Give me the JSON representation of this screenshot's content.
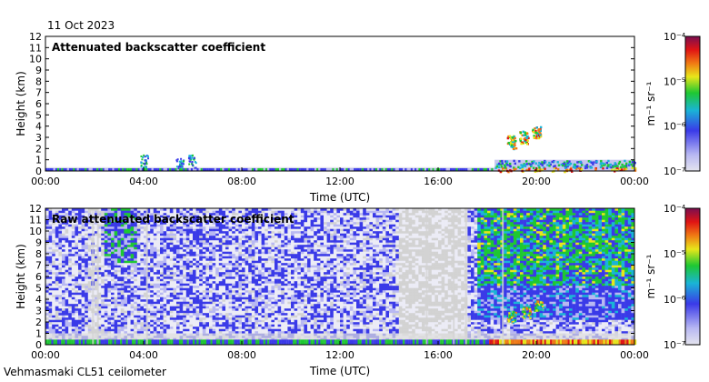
{
  "header": {
    "date": "11 Oct 2023"
  },
  "footer": {
    "instrument": "Vehmasmaki CL51 ceilometer"
  },
  "chart_data": [
    {
      "type": "heatmap",
      "title": "Attenuated backscatter coefficient",
      "xlabel": "Time (UTC)",
      "ylabel": "Height (km)",
      "x_ticks": [
        "00:00",
        "04:00",
        "08:00",
        "12:00",
        "16:00",
        "20:00",
        "00:00"
      ],
      "x_range_hours": [
        0,
        24
      ],
      "y_ticks": [
        "0",
        "1",
        "2",
        "3",
        "4",
        "5",
        "6",
        "7",
        "8",
        "9",
        "10",
        "11",
        "12"
      ],
      "ylim_km": [
        0,
        12
      ],
      "colorbar": {
        "label": "m⁻¹ sr⁻¹",
        "ticks": [
          "10⁻⁷",
          "10⁻⁶",
          "10⁻⁵",
          "10⁻⁴"
        ],
        "range": [
          1e-07,
          0.0001
        ],
        "scale": "log"
      },
      "features": [
        {
          "kind": "surface layer",
          "t_start": 0,
          "t_end": 24,
          "top_km": 0.3
        },
        {
          "kind": "aerosol layer",
          "t_start": 18.3,
          "t_end": 24,
          "top_km": 1.0
        },
        {
          "kind": "cloud",
          "t_start": 18.8,
          "t_end": 20.2,
          "base_km": 2.0,
          "top_km": 4.0
        },
        {
          "kind": "cloud",
          "t_start": 3.8,
          "t_end": 4.0,
          "base_km": 0.3,
          "top_km": 1.5
        },
        {
          "kind": "cloud",
          "t_start": 5.2,
          "t_end": 6.2,
          "base_km": 0.2,
          "top_km": 1.5
        }
      ]
    },
    {
      "type": "heatmap",
      "title": "Raw attenuated backscatter coefficient",
      "xlabel": "Time (UTC)",
      "ylabel": "Height (km)",
      "x_ticks": [
        "00:00",
        "04:00",
        "08:00",
        "12:00",
        "16:00",
        "20:00",
        "00:00"
      ],
      "x_range_hours": [
        0,
        24
      ],
      "y_ticks": [
        "0",
        "1",
        "2",
        "3",
        "4",
        "5",
        "6",
        "7",
        "8",
        "9",
        "10",
        "11",
        "12"
      ],
      "ylim_km": [
        0,
        12
      ],
      "colorbar": {
        "label": "m⁻¹ sr⁻¹",
        "ticks": [
          "10⁻⁷",
          "10⁻⁶",
          "10⁻⁵",
          "10⁻⁴"
        ],
        "range": [
          1e-07,
          0.0001
        ],
        "scale": "log"
      },
      "features": [
        {
          "kind": "noise",
          "t_start": 0,
          "t_end": 24,
          "base_km": 1,
          "top_km": 12
        },
        {
          "kind": "high-signal background",
          "t_start": 17.5,
          "t_end": 24,
          "base_km": 5,
          "top_km": 12
        },
        {
          "kind": "surface layer",
          "t_start": 0,
          "t_end": 24,
          "top_km": 0.5
        },
        {
          "kind": "cloud",
          "t_start": 18.8,
          "t_end": 20.2,
          "base_km": 2.0,
          "top_km": 4.0
        }
      ]
    }
  ],
  "colors": {
    "colorbar_stops": [
      "#e4e4ee",
      "#b8b8f2",
      "#3a3ae8",
      "#1ab4d6",
      "#1ec832",
      "#e8e61a",
      "#f07a14",
      "#e01414",
      "#7a0e50"
    ],
    "haze": "#d3d3d3"
  }
}
